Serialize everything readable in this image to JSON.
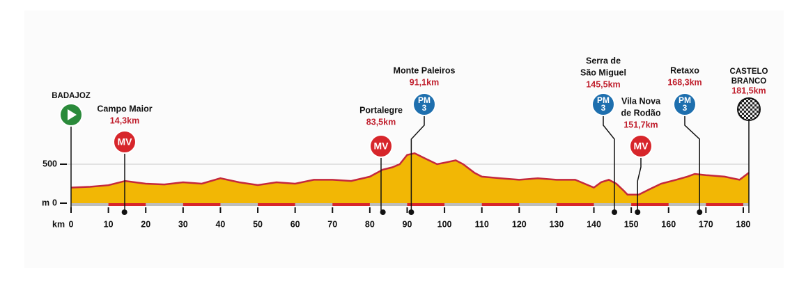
{
  "chart_data": {
    "type": "area",
    "xlabel": "km",
    "ylabel": "m",
    "x": [
      0,
      5,
      10,
      14.5,
      20,
      25,
      30,
      35,
      40,
      45,
      50,
      55,
      60,
      65,
      70,
      75,
      80,
      83.5,
      86,
      88,
      90,
      92,
      95,
      98,
      100,
      103,
      105,
      108,
      110,
      115,
      120,
      125,
      130,
      135,
      140,
      142,
      144,
      146,
      148,
      149,
      152,
      155,
      158,
      162,
      165,
      167,
      170,
      175,
      179,
      181.5
    ],
    "values": [
      200,
      210,
      230,
      285,
      250,
      240,
      268,
      250,
      320,
      268,
      232,
      268,
      250,
      300,
      300,
      285,
      340,
      430,
      460,
      500,
      620,
      640,
      570,
      500,
      520,
      550,
      500,
      390,
      340,
      320,
      300,
      320,
      300,
      300,
      200,
      270,
      300,
      250,
      160,
      110,
      110,
      180,
      250,
      300,
      340,
      375,
      360,
      340,
      300,
      390
    ],
    "color": "#f2b705",
    "line_color": "#c4283c",
    "xlim": [
      0,
      181.5
    ],
    "ylim": [
      0,
      700
    ],
    "xticks": [
      0,
      10,
      20,
      30,
      40,
      50,
      60,
      70,
      80,
      90,
      100,
      110,
      120,
      130,
      140,
      150,
      160,
      170,
      180
    ],
    "yticks": [
      0,
      500
    ],
    "grid": true,
    "waypoints": [
      {
        "name": [
          "BADAJOZ"
        ],
        "km": 0,
        "kind": "start"
      },
      {
        "name": [
          "Campo Maior"
        ],
        "km": 14.3,
        "km_label": "14,3km",
        "kind": "MV",
        "marker": [
          "MV"
        ]
      },
      {
        "name": [
          "Portalegre"
        ],
        "km": 83.5,
        "km_label": "83,5km",
        "kind": "MV",
        "marker": [
          "MV"
        ]
      },
      {
        "name": [
          "Monte Paleiros"
        ],
        "km": 91.1,
        "km_label": "91,1km",
        "kind": "PM",
        "marker": [
          "PM",
          "3"
        ]
      },
      {
        "name": [
          "Serra de",
          "São Miguel"
        ],
        "km": 145.5,
        "km_label": "145,5km",
        "kind": "PM",
        "marker": [
          "PM",
          "3"
        ]
      },
      {
        "name": [
          "Vila Nova",
          "de Rodão"
        ],
        "km": 151.7,
        "km_label": "151,7km",
        "kind": "MV",
        "marker": [
          "MV"
        ]
      },
      {
        "name": [
          "Retaxo"
        ],
        "km": 168.3,
        "km_label": "168,3km",
        "kind": "PM",
        "marker": [
          "PM",
          "3"
        ]
      },
      {
        "name": [
          "CASTELO",
          "BRANCO"
        ],
        "km": 181.5,
        "km_label": "181,5km",
        "kind": "finish"
      }
    ]
  }
}
